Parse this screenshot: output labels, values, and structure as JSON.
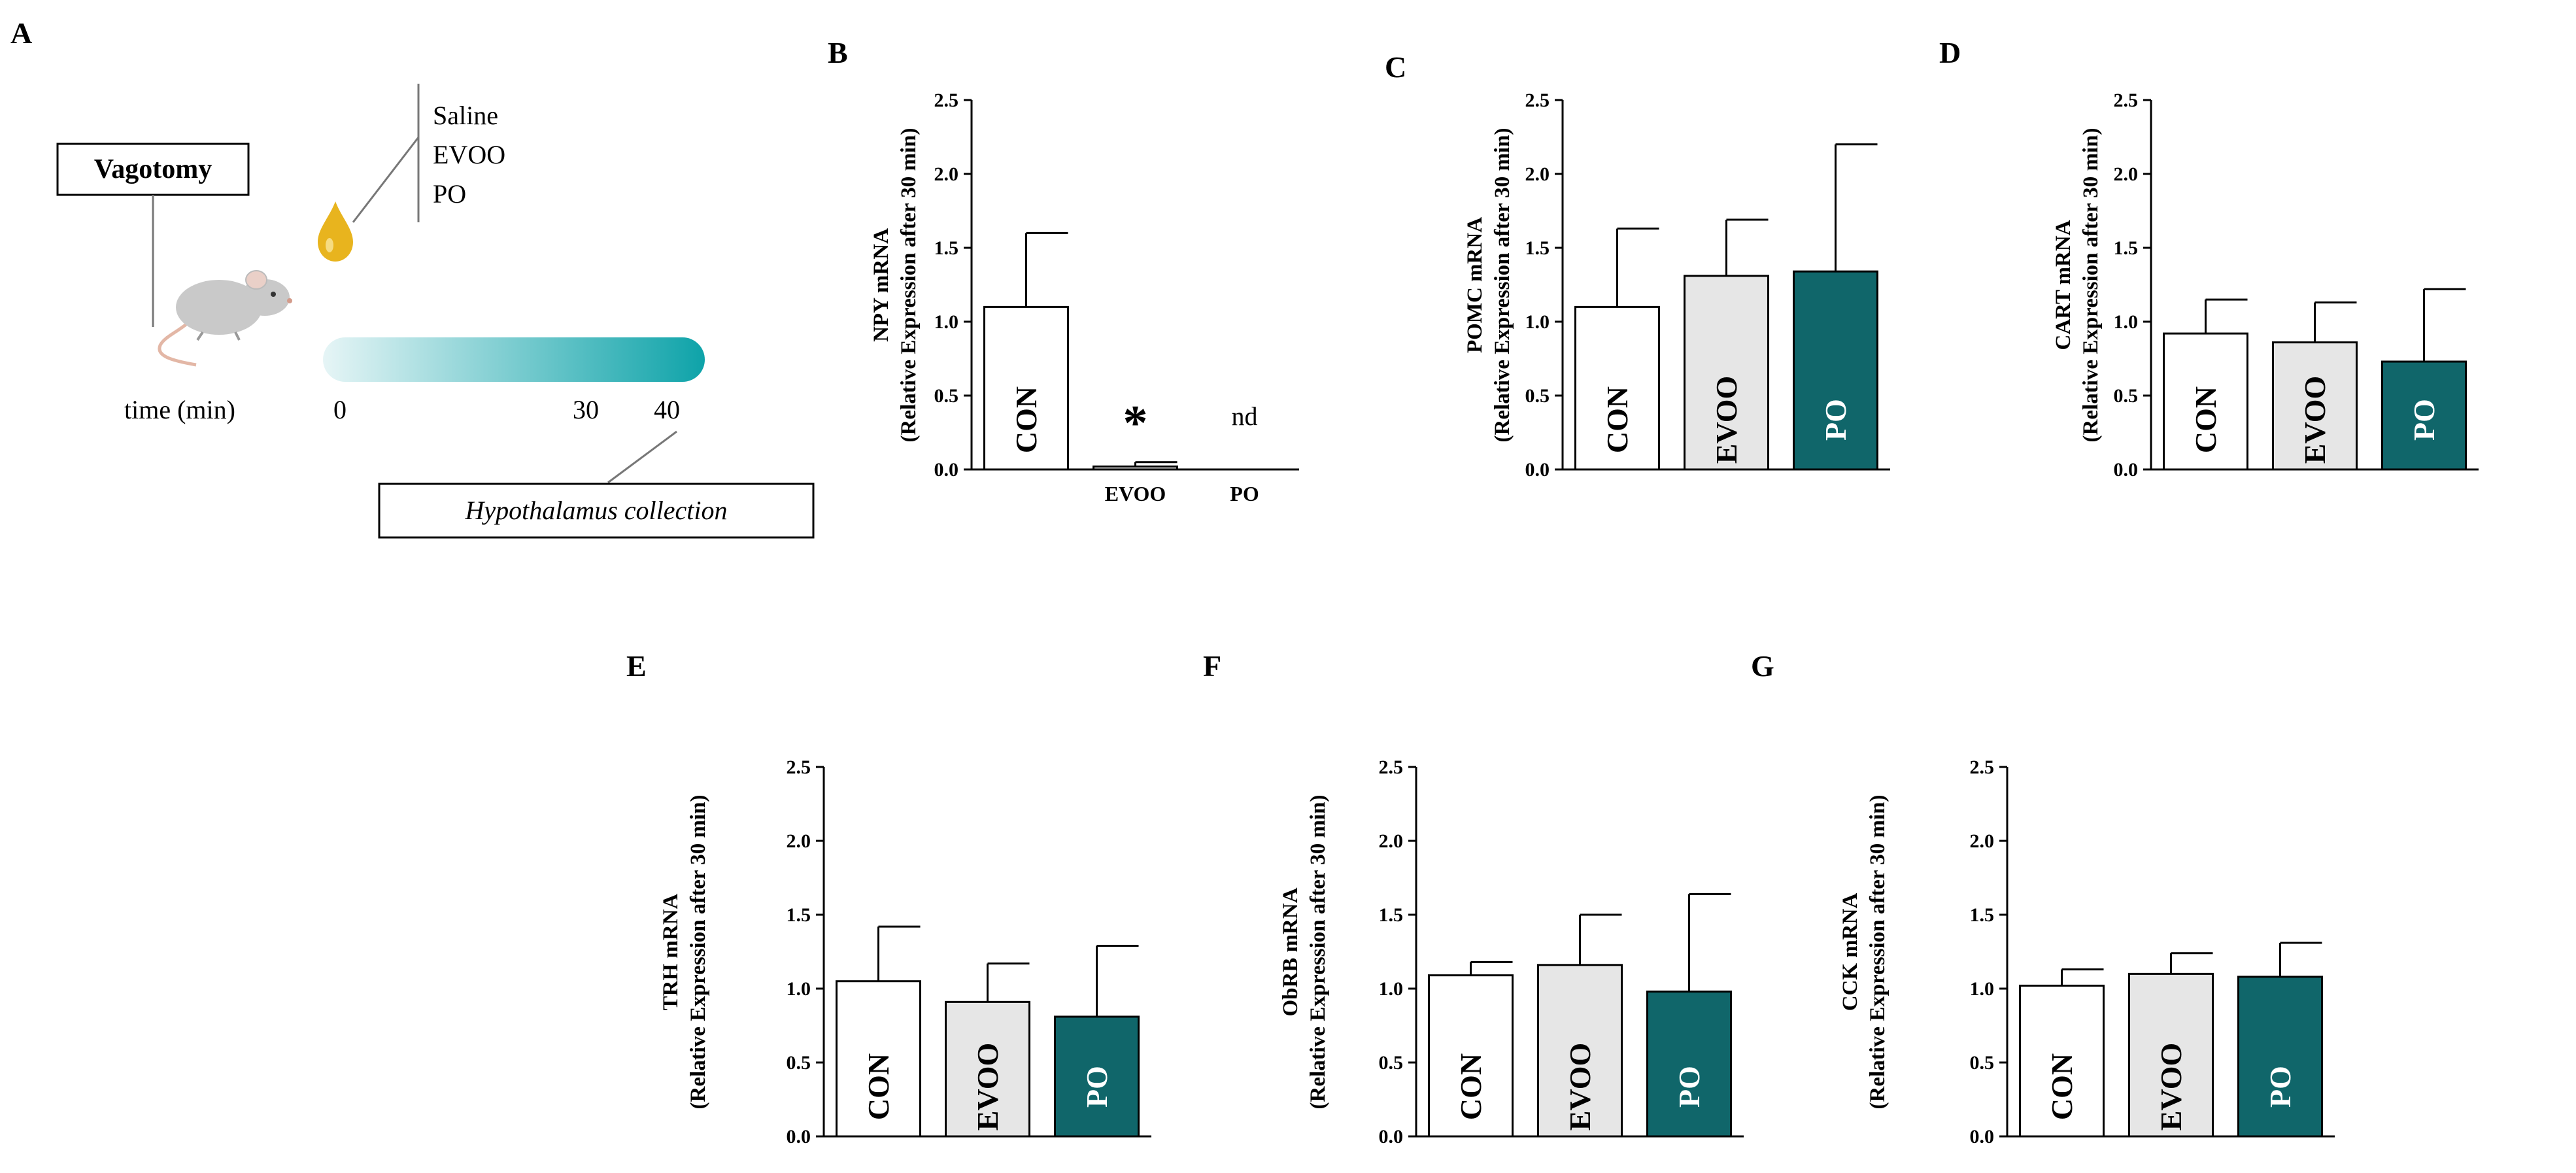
{
  "panelA": {
    "letter": "A",
    "vagotomy_label": "Vagotomy",
    "treatments": [
      "Saline",
      "EVOO",
      "PO"
    ],
    "time_label": "time (min)",
    "time_ticks": [
      "0",
      "30",
      "40"
    ],
    "collection_label": "Hypothalamus collection",
    "colors": {
      "gradient_start": "#e6f5f6",
      "gradient_end": "#0ea3a9",
      "oil_drop": "#e8b41e",
      "mouse": "#c9c9c9",
      "tail": "#e3b7a6"
    },
    "icons": [
      "mouse-icon",
      "oil-drop-icon"
    ]
  },
  "colors": {
    "CON": "#ffffff",
    "EVOO": "#e6e6e6",
    "PO": "#10666a",
    "stroke": "#000000"
  },
  "chart_data": [
    {
      "panel": "B",
      "type": "bar",
      "ylabel_line1": "NPY mRNA",
      "ylabel_line2": "(Relative Expression after 30 min)",
      "ylim": [
        0,
        2.5
      ],
      "yticks": [
        "0.0",
        "0.5",
        "1.0",
        "1.5",
        "2.0",
        "2.5"
      ],
      "categories": [
        "CON",
        "EVOO",
        "PO"
      ],
      "values": [
        1.1,
        0.02,
        0
      ],
      "errors": [
        0.5,
        0.03,
        0
      ],
      "label_inside": [
        true,
        false,
        false
      ],
      "visible": [
        true,
        true,
        false
      ],
      "annotations": [
        {
          "category": "EVOO",
          "text": "*"
        },
        {
          "category": "PO",
          "text": "nd"
        }
      ]
    },
    {
      "panel": "C",
      "type": "bar",
      "ylabel_line1": "POMC mRNA",
      "ylabel_line2": "(Relative Expression after 30 min)",
      "ylim": [
        0,
        2.5
      ],
      "yticks": [
        "0.0",
        "0.5",
        "1.0",
        "1.5",
        "2.0",
        "2.5"
      ],
      "categories": [
        "CON",
        "EVOO",
        "PO"
      ],
      "values": [
        1.1,
        1.31,
        1.34
      ],
      "errors": [
        0.53,
        0.38,
        0.86
      ],
      "label_inside": [
        true,
        true,
        true
      ],
      "visible": [
        true,
        true,
        true
      ],
      "annotations": []
    },
    {
      "panel": "D",
      "type": "bar",
      "ylabel_line1": "CART mRNA",
      "ylabel_line2": "(Relative Expression after 30 min)",
      "ylim": [
        0,
        2.5
      ],
      "yticks": [
        "0.0",
        "0.5",
        "1.0",
        "1.5",
        "2.0",
        "2.5"
      ],
      "categories": [
        "CON",
        "EVOO",
        "PO"
      ],
      "values": [
        0.92,
        0.86,
        0.73
      ],
      "errors": [
        0.23,
        0.27,
        0.49
      ],
      "label_inside": [
        true,
        true,
        true
      ],
      "visible": [
        true,
        true,
        true
      ],
      "annotations": []
    },
    {
      "panel": "E",
      "type": "bar",
      "ylabel_line1": "TRH mRNA",
      "ylabel_line2": "(Relative Expression after 30 min)",
      "ylim": [
        0,
        2.5
      ],
      "yticks": [
        "0.0",
        "0.5",
        "1.0",
        "1.5",
        "2.0",
        "2.5"
      ],
      "categories": [
        "CON",
        "EVOO",
        "PO"
      ],
      "values": [
        1.05,
        0.91,
        0.81
      ],
      "errors": [
        0.37,
        0.26,
        0.48
      ],
      "label_inside": [
        true,
        true,
        true
      ],
      "visible": [
        true,
        true,
        true
      ],
      "annotations": []
    },
    {
      "panel": "F",
      "type": "bar",
      "ylabel_line1": "ObRB mRNA",
      "ylabel_line2": "(Relative Expression after 30 min)",
      "ylim": [
        0,
        2.5
      ],
      "yticks": [
        "0.0",
        "0.5",
        "1.0",
        "1.5",
        "2.0",
        "2.5"
      ],
      "categories": [
        "CON",
        "EVOO",
        "PO"
      ],
      "values": [
        1.09,
        1.16,
        0.98
      ],
      "errors": [
        0.09,
        0.34,
        0.66
      ],
      "label_inside": [
        true,
        true,
        true
      ],
      "visible": [
        true,
        true,
        true
      ],
      "annotations": []
    },
    {
      "panel": "G",
      "type": "bar",
      "ylabel_line1": "CCK mRNA",
      "ylabel_line2": "(Relative Expression after 30 min)",
      "ylim": [
        0,
        2.5
      ],
      "yticks": [
        "0.0",
        "0.5",
        "1.0",
        "1.5",
        "2.0",
        "2.5"
      ],
      "categories": [
        "CON",
        "EVOO",
        "PO"
      ],
      "values": [
        1.02,
        1.1,
        1.08
      ],
      "errors": [
        0.11,
        0.14,
        0.23
      ],
      "label_inside": [
        true,
        true,
        true
      ],
      "visible": [
        true,
        true,
        true
      ],
      "annotations": []
    }
  ]
}
